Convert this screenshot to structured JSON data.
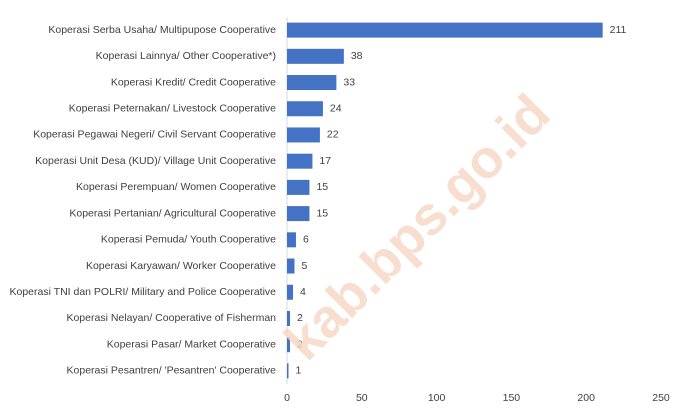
{
  "chart_data": {
    "type": "bar",
    "orientation": "horizontal",
    "categories": [
      "Koperasi Serba Usaha/ Multipupose Cooperative",
      "Koperasi Lainnya/ Other Cooperative*)",
      "Koperasi Kredit/ Credit Cooperative",
      "Koperasi Peternakan/ Livestock Cooperative",
      "Koperasi Pegawai Negeri/ Civil Servant Cooperative",
      "Koperasi Unit Desa (KUD)/ Village Unit Cooperative",
      "Koperasi Perempuan/ Women Cooperative",
      "Koperasi Pertanian/ Agricultural Cooperative",
      "Koperasi Pemuda/ Youth Cooperative",
      "Koperasi Karyawan/ Worker Cooperative",
      "Koperasi TNI dan POLRI/ Military and Police Cooperative",
      "Koperasi Nelayan/ Cooperative of Fisherman",
      "Koperasi Pasar/ Market Cooperative",
      "Koperasi Pesantren/ 'Pesantren' Cooperative"
    ],
    "values": [
      211,
      38,
      33,
      24,
      22,
      17,
      15,
      15,
      6,
      5,
      4,
      2,
      2,
      1
    ],
    "color": "#4472c4",
    "xlim": [
      0,
      250
    ],
    "xticks": [
      0,
      50,
      100,
      150,
      200,
      250
    ],
    "grid": false,
    "watermark": "kab.bps.go.id"
  }
}
